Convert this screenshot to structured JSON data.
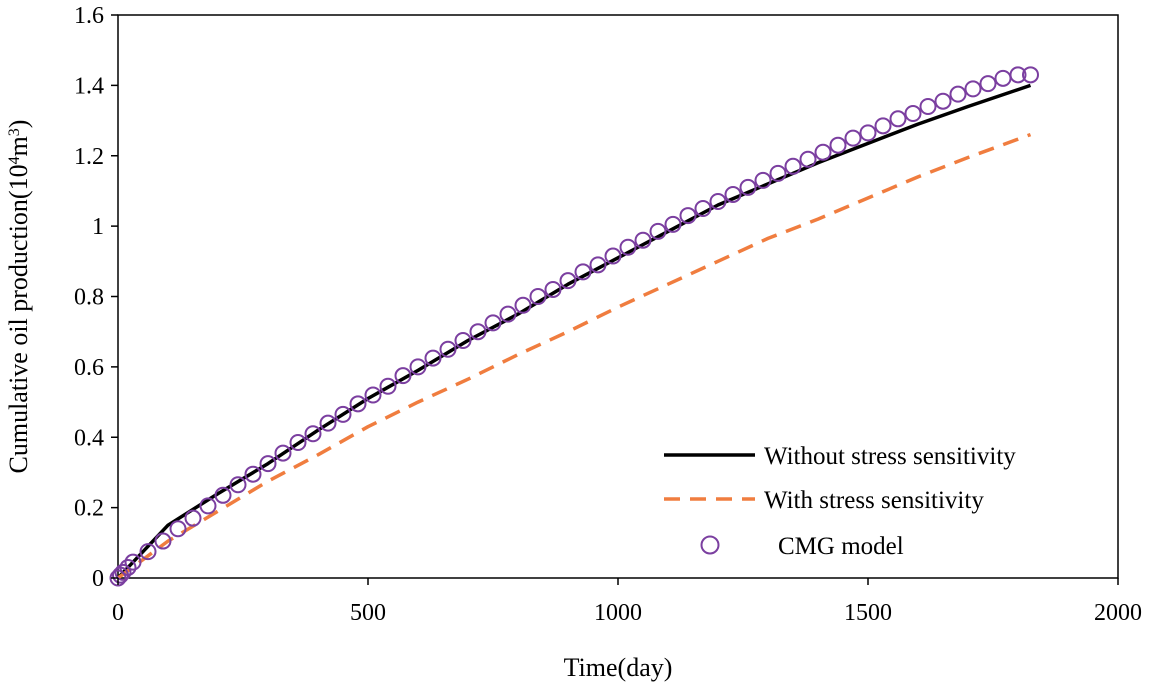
{
  "chart_data": {
    "type": "line",
    "xlabel": "Time(day)",
    "ylabel_prefix": "Cumulative oil production(10",
    "ylabel_sup": "4",
    "ylabel_mid": "m",
    "ylabel_sup2": "3",
    "ylabel_suffix": ")",
    "xlim": [
      0,
      2000
    ],
    "ylim": [
      0,
      1.6
    ],
    "x_ticks": [
      0,
      500,
      1000,
      1500,
      2000
    ],
    "x_tick_labels": [
      "0",
      "500",
      "1000",
      "1500",
      "2000"
    ],
    "y_ticks": [
      0,
      0.2,
      0.4,
      0.6,
      0.8,
      1.0,
      1.2,
      1.4,
      1.6
    ],
    "y_tick_labels": [
      "0",
      "0.2",
      "0.4",
      "0.6",
      "0.8",
      "1",
      "1.2",
      "1.4",
      "1.6"
    ],
    "grid": false,
    "legend_position": "bottom-right",
    "series": [
      {
        "name": "Without stress sensitivity",
        "style": "solid-line",
        "color": "#000000",
        "x": [
          0,
          100,
          200,
          300,
          400,
          500,
          600,
          700,
          800,
          900,
          1000,
          1100,
          1200,
          1300,
          1400,
          1500,
          1600,
          1700,
          1825
        ],
        "y": [
          0,
          0.15,
          0.24,
          0.325,
          0.42,
          0.51,
          0.59,
          0.675,
          0.75,
          0.835,
          0.91,
          0.985,
          1.06,
          1.12,
          1.18,
          1.235,
          1.29,
          1.34,
          1.4
        ]
      },
      {
        "name": "With stress sensitivity",
        "style": "dashed-line",
        "color": "#F07D3F",
        "x": [
          0,
          100,
          200,
          300,
          400,
          500,
          600,
          700,
          800,
          900,
          1000,
          1100,
          1200,
          1300,
          1400,
          1500,
          1600,
          1700,
          1825
        ],
        "y": [
          0,
          0.105,
          0.19,
          0.275,
          0.35,
          0.43,
          0.5,
          0.565,
          0.635,
          0.7,
          0.77,
          0.835,
          0.9,
          0.965,
          1.02,
          1.08,
          1.14,
          1.195,
          1.26
        ]
      },
      {
        "name": "CMG model",
        "style": "open-circle-markers",
        "color": "#7B3FA0",
        "x": [
          0,
          5,
          10,
          20,
          30,
          60,
          90,
          120,
          150,
          180,
          210,
          240,
          270,
          300,
          330,
          360,
          390,
          420,
          450,
          480,
          510,
          540,
          570,
          600,
          630,
          660,
          690,
          720,
          750,
          780,
          810,
          840,
          870,
          900,
          930,
          960,
          990,
          1020,
          1050,
          1080,
          1110,
          1140,
          1170,
          1200,
          1230,
          1260,
          1290,
          1320,
          1350,
          1380,
          1410,
          1440,
          1470,
          1500,
          1530,
          1560,
          1590,
          1620,
          1650,
          1680,
          1710,
          1740,
          1770,
          1800,
          1825
        ],
        "y": [
          0,
          0.008,
          0.016,
          0.03,
          0.045,
          0.075,
          0.105,
          0.14,
          0.17,
          0.205,
          0.235,
          0.265,
          0.295,
          0.325,
          0.355,
          0.385,
          0.41,
          0.44,
          0.465,
          0.495,
          0.52,
          0.545,
          0.575,
          0.6,
          0.625,
          0.65,
          0.675,
          0.7,
          0.725,
          0.75,
          0.775,
          0.8,
          0.82,
          0.845,
          0.87,
          0.89,
          0.915,
          0.94,
          0.96,
          0.985,
          1.005,
          1.03,
          1.05,
          1.07,
          1.09,
          1.11,
          1.13,
          1.15,
          1.17,
          1.19,
          1.21,
          1.23,
          1.25,
          1.265,
          1.285,
          1.305,
          1.32,
          1.34,
          1.355,
          1.375,
          1.39,
          1.405,
          1.42,
          1.43,
          1.43
        ]
      }
    ]
  }
}
